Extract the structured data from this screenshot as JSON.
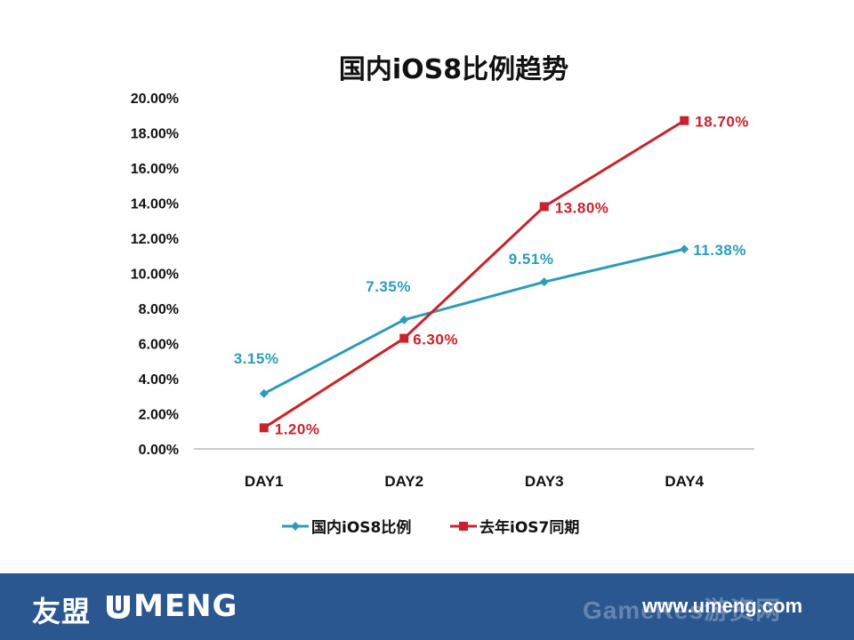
{
  "chart_data": {
    "type": "line",
    "title": "国内iOS8比例趋势",
    "categories": [
      "DAY1",
      "DAY2",
      "DAY3",
      "DAY4"
    ],
    "y_ticks": [
      "0.00%",
      "2.00%",
      "4.00%",
      "6.00%",
      "8.00%",
      "10.00%",
      "12.00%",
      "14.00%",
      "16.00%",
      "18.00%",
      "20.00%"
    ],
    "ylim": [
      0,
      20
    ],
    "grid": false,
    "legend_position": "bottom",
    "series": [
      {
        "name": "国内iOS8比例",
        "color": "#2e9cb8",
        "marker": "diamond",
        "values": [
          3.15,
          7.35,
          9.51,
          11.38
        ],
        "labels": [
          "3.15%",
          "7.35%",
          "9.51%",
          "11.38%"
        ]
      },
      {
        "name": "去年iOS7同期",
        "color": "#c8232c",
        "marker": "square",
        "values": [
          1.2,
          6.3,
          13.8,
          18.7
        ],
        "labels": [
          "1.20%",
          "6.30%",
          "13.80%",
          "18.70%"
        ]
      }
    ]
  },
  "footer": {
    "brand_cn": "友盟",
    "brand_en": "MENG",
    "site_url": "www.umeng.com",
    "watermark": "GameRes游资网",
    "background": "#2a5790"
  }
}
